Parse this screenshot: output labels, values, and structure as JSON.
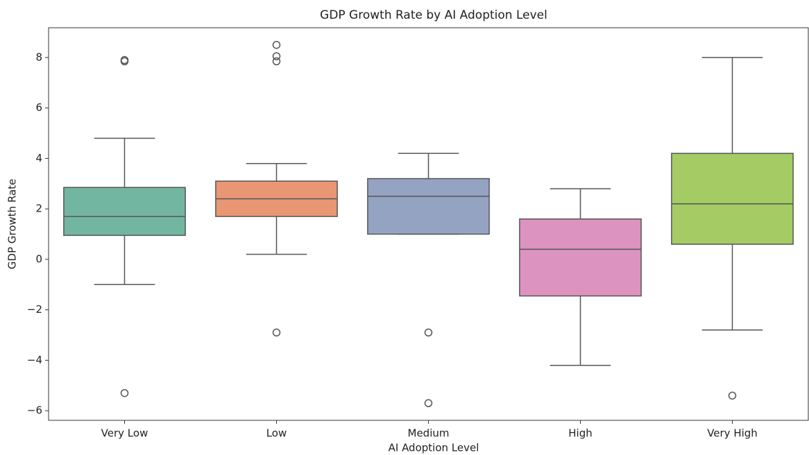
{
  "chart_data": {
    "type": "box",
    "title": "GDP Growth Rate by AI Adoption Level",
    "x_label": "AI Adoption Level",
    "y_label": "GDP Growth Rate",
    "categories": [
      "Very Low",
      "Low",
      "Medium",
      "High",
      "Very High"
    ],
    "colors": [
      "#72b6a1",
      "#e99675",
      "#95a3c3",
      "#dc93c0",
      "#a4cb64"
    ],
    "boxes": [
      {
        "whislo": -1.0,
        "q1": 0.95,
        "med": 1.7,
        "q3": 2.85,
        "whishi": 4.8,
        "fliers": [
          7.9,
          7.85,
          -5.3
        ]
      },
      {
        "whislo": 0.2,
        "q1": 1.7,
        "med": 2.4,
        "q3": 3.1,
        "whishi": 3.8,
        "fliers": [
          8.5,
          8.05,
          7.85,
          -2.9
        ]
      },
      {
        "whislo": 1.0,
        "q1": 1.0,
        "med": 2.5,
        "q3": 3.2,
        "whishi": 4.2,
        "fliers": [
          -2.9,
          -5.7
        ]
      },
      {
        "whislo": -4.2,
        "q1": -1.45,
        "med": 0.4,
        "q3": 1.6,
        "whishi": 2.8,
        "fliers": []
      },
      {
        "whislo": -2.8,
        "q1": 0.6,
        "med": 2.2,
        "q3": 4.2,
        "whishi": 8.0,
        "fliers": [
          -5.4
        ]
      }
    ],
    "ylim": [
      -6.38,
      9.18
    ],
    "yticks": [
      {
        "value": -6,
        "label": "−6"
      },
      {
        "value": -4,
        "label": "−4"
      },
      {
        "value": -2,
        "label": "−2"
      },
      0,
      2,
      4,
      6,
      8
    ],
    "grid": false
  }
}
